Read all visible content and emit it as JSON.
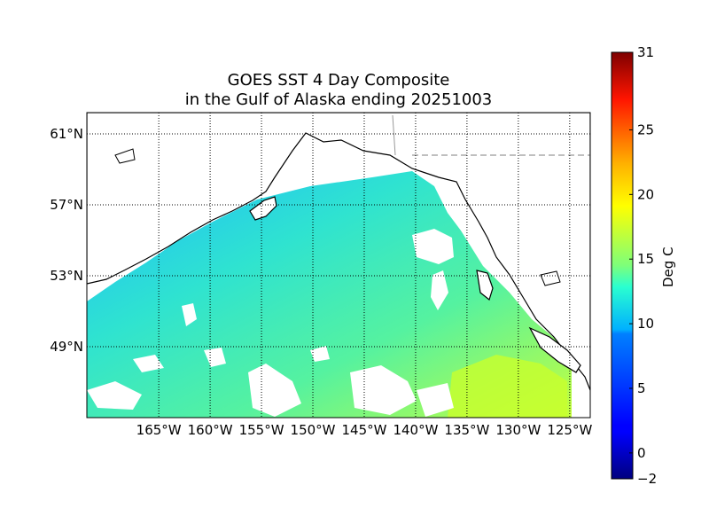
{
  "title": {
    "line1": "GOES SST 4 Day Composite",
    "line2": "in the Gulf of Alaska ending 20251003"
  },
  "map": {
    "lon_range": [
      -172,
      -123
    ],
    "lat_range": [
      45,
      62.2
    ],
    "lon_ticks": [
      {
        "value": -165,
        "label": "165°W"
      },
      {
        "value": -160,
        "label": "160°W"
      },
      {
        "value": -155,
        "label": "155°W"
      },
      {
        "value": -150,
        "label": "150°W"
      },
      {
        "value": -145,
        "label": "145°W"
      },
      {
        "value": -140,
        "label": "140°W"
      },
      {
        "value": -135,
        "label": "135°W"
      },
      {
        "value": -130,
        "label": "130°W"
      },
      {
        "value": -125,
        "label": "125°W"
      }
    ],
    "lat_ticks": [
      {
        "value": 61,
        "label": "61°N"
      },
      {
        "value": 57,
        "label": "57°N"
      },
      {
        "value": 53,
        "label": "53°N"
      },
      {
        "value": 49,
        "label": "49°N"
      }
    ],
    "grid": "dotted",
    "coastline_color": "#000000",
    "border_color": "#999999"
  },
  "colorbar": {
    "label": "Deg C",
    "range": [
      -2,
      31
    ],
    "ticks": [
      {
        "value": 31,
        "label": "31"
      },
      {
        "value": 25,
        "label": "25"
      },
      {
        "value": 20,
        "label": "20"
      },
      {
        "value": 15,
        "label": "15"
      },
      {
        "value": 10,
        "label": "10"
      },
      {
        "value": 5,
        "label": "5"
      },
      {
        "value": 0,
        "label": "0"
      },
      {
        "value": -2,
        "label": "−2"
      }
    ],
    "colormap": "jet"
  }
}
